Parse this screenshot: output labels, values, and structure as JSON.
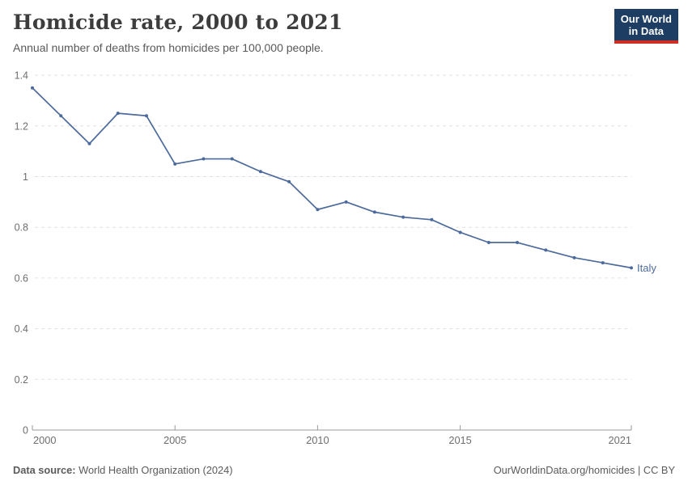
{
  "header": {
    "title": "Homicide rate, 2000 to 2021",
    "subtitle": "Annual number of deaths from homicides per 100,000 people."
  },
  "logo": {
    "line1": "Our World",
    "line2": "in Data",
    "bg_color": "#1d3d63",
    "accent_color": "#cf2e22"
  },
  "chart_data": {
    "type": "line",
    "title": "Homicide rate, 2000 to 2021",
    "xlabel": "",
    "ylabel": "",
    "x": [
      2000,
      2001,
      2002,
      2003,
      2004,
      2005,
      2006,
      2007,
      2008,
      2009,
      2010,
      2011,
      2012,
      2013,
      2014,
      2015,
      2016,
      2017,
      2018,
      2019,
      2020,
      2021
    ],
    "series": [
      {
        "name": "Italy",
        "color": "#4c6a9c",
        "values": [
          1.35,
          1.24,
          1.13,
          1.25,
          1.24,
          1.05,
          1.07,
          1.07,
          1.02,
          0.98,
          0.87,
          0.9,
          0.86,
          0.84,
          0.83,
          0.78,
          0.74,
          0.74,
          0.71,
          0.68,
          0.66,
          0.64
        ]
      }
    ],
    "ylim": [
      0,
      1.4
    ],
    "yticks": [
      0,
      0.2,
      0.4,
      0.6,
      0.8,
      1,
      1.2,
      1.4
    ],
    "xticks": [
      2000,
      2005,
      2010,
      2015,
      2021
    ],
    "grid": "horizontal-dashed",
    "legend": "end-of-line-label",
    "colors": {
      "grid": "#e0e0e0",
      "axis": "#999999",
      "tick_label": "#6e6e6e"
    }
  },
  "footer": {
    "datasource_label": "Data source:",
    "datasource_text": "World Health Organization (2024)",
    "license_text": "OurWorldinData.org/homicides | CC BY"
  }
}
